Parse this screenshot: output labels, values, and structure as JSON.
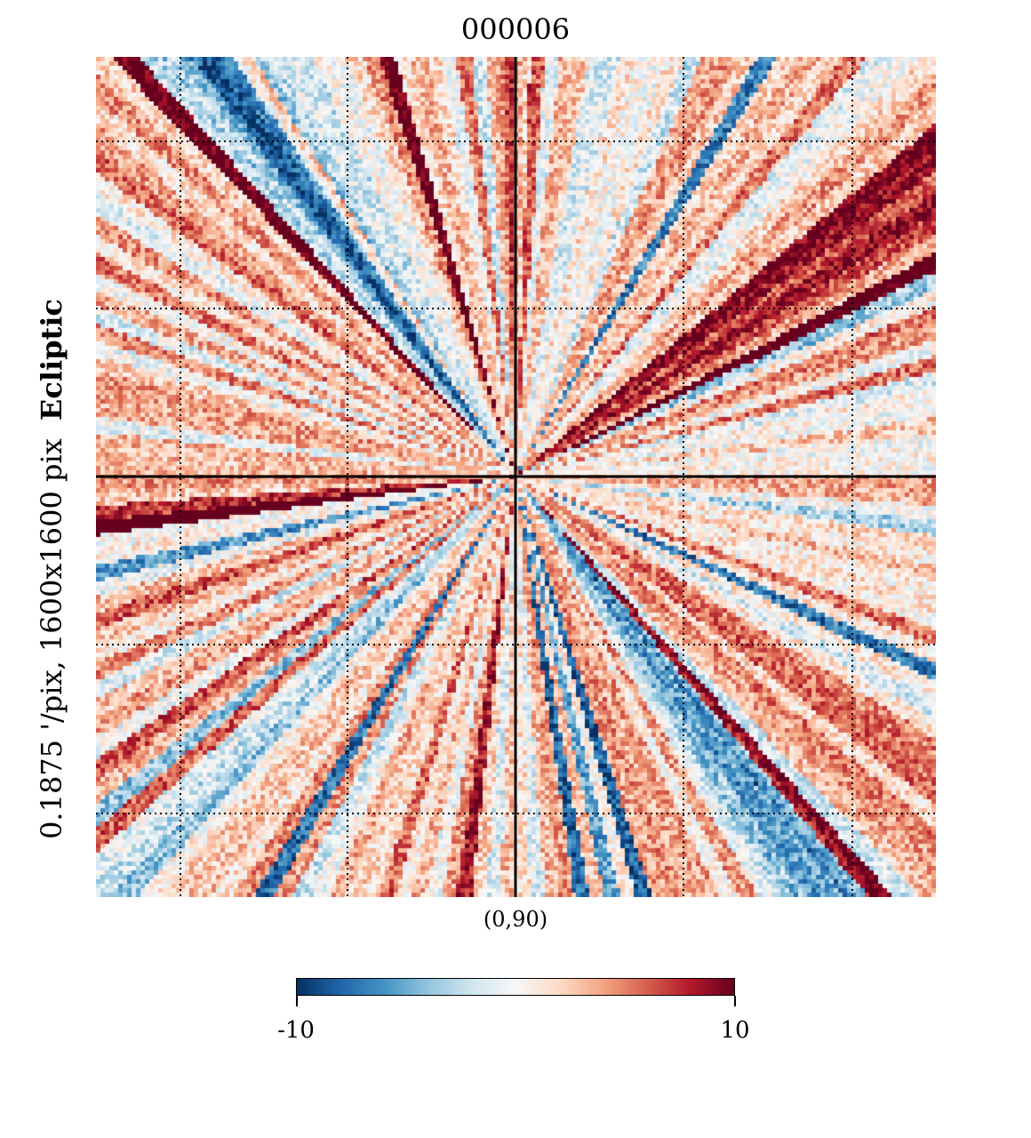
{
  "title": "000006",
  "projection": {
    "resolution_label": "0.1875 '/pix,",
    "size_label": "1600x1600 pix",
    "coord_label": "Ecliptic",
    "center_label": "(0,90)"
  },
  "colorbar": {
    "min_label": "-10",
    "max_label": "10",
    "colormap": "RdBu_r",
    "stops": [
      "#053061",
      "#2166ac",
      "#4393c3",
      "#92c5de",
      "#d1e5f0",
      "#f7f7f7",
      "#fddbc7",
      "#f4a582",
      "#d6604d",
      "#b2182b",
      "#67001f"
    ]
  },
  "chart_data": {
    "type": "heatmap",
    "title": "000006",
    "projection": "gnomonic",
    "center": [
      0,
      90
    ],
    "resolution_arcmin_per_pix": 0.1875,
    "xsize": 1600,
    "ysize": 1600,
    "coord": "Ecliptic",
    "vmin": -10,
    "vmax": 10,
    "colormap": "RdBu_r",
    "graticule": "dotted",
    "pattern": "radial streaks converging at the pole; strong dark blue diagonals upper-left and lower-right; red streaks upper-right and left"
  }
}
